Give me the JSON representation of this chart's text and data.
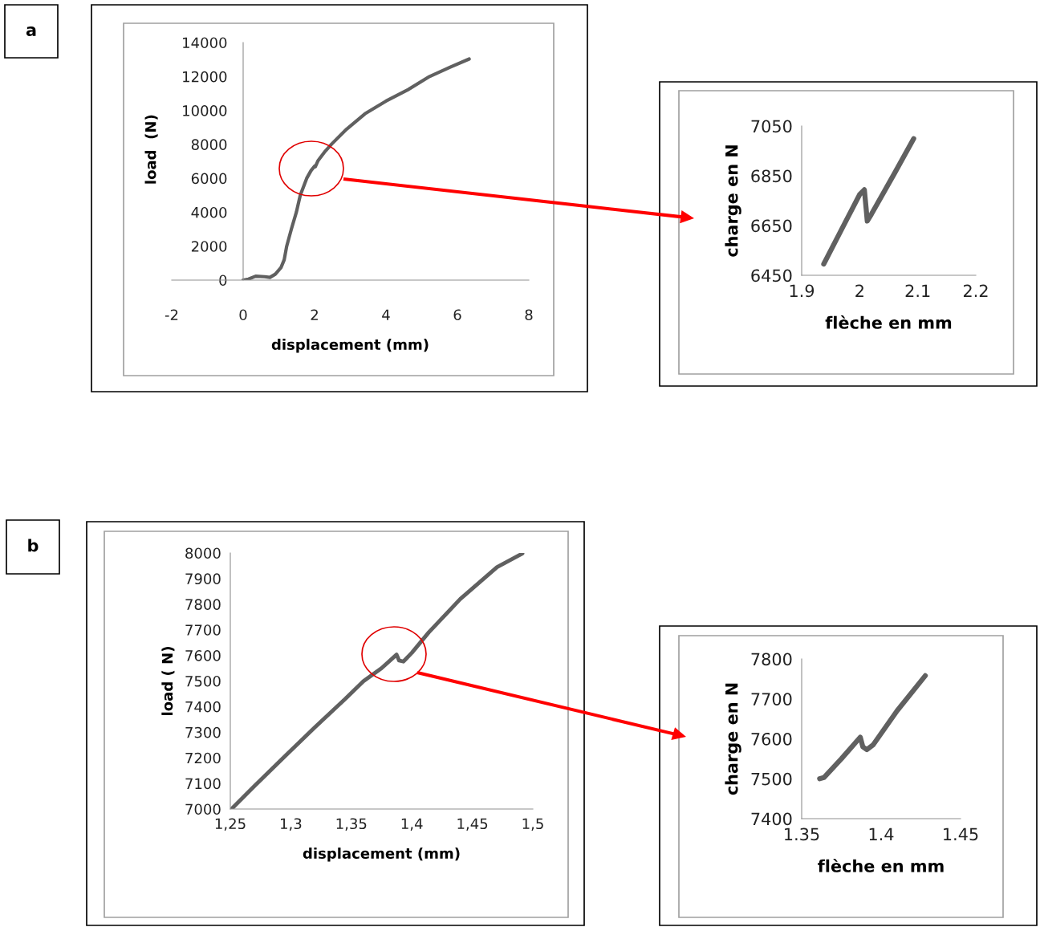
{
  "chart_data": [
    {
      "type": "line",
      "xlabel": "displacement (mm)",
      "ylabel": "load  (N)",
      "annotations": [
        "a"
      ],
      "color": "#606060",
      "x": [
        0,
        0.15,
        0.35,
        0.6,
        0.75,
        0.9,
        1.06,
        1.15,
        1.22,
        1.35,
        1.49,
        1.6,
        1.78,
        1.9,
        2.0,
        2.02,
        2.1,
        2.3,
        2.47,
        2.9,
        3.41,
        4,
        4.6,
        5.22,
        5.8,
        6.33
      ],
      "values": [
        0,
        60,
        230,
        200,
        160,
        350,
        740,
        1200,
        2000,
        3000,
        4000,
        5000,
        6000,
        6450,
        6720,
        6680,
        7050,
        7600,
        8000,
        8900,
        9800,
        10550,
        11200,
        12000,
        12550,
        13030
      ],
      "xlim": [
        -2,
        8
      ],
      "xticks": [
        -2,
        0,
        2,
        4,
        6,
        8
      ],
      "ylim": [
        0,
        14000
      ],
      "yticks": [
        0,
        2000,
        4000,
        6000,
        8000,
        10000,
        12000,
        14000
      ],
      "grid": false,
      "legend": false,
      "marker": "none",
      "line_style": "solid"
    },
    {
      "type": "line",
      "xlabel": "flèche en mm",
      "ylabel": "charge en N",
      "color": "#606060",
      "x": [
        1.938,
        1.97,
        2.0,
        2.008,
        2.011,
        2.013,
        2.02,
        2.06,
        2.093
      ],
      "values": [
        6495,
        6640,
        6775,
        6794,
        6720,
        6668,
        6695,
        6860,
        6999
      ],
      "xlim": [
        1.9,
        2.2
      ],
      "xticks": [
        1.9,
        2,
        2.1,
        2.2
      ],
      "ylim": [
        6450,
        7050
      ],
      "yticks": [
        6450,
        6650,
        6850,
        7050
      ],
      "grid": false,
      "legend": false,
      "marker": "none",
      "line_style": "solid"
    },
    {
      "type": "line",
      "xlabel": "displacement (mm)",
      "ylabel": "load ( N)",
      "annotations": [
        "b"
      ],
      "color": "#606060",
      "x": [
        1.251,
        1.27,
        1.297,
        1.32,
        1.345,
        1.36,
        1.375,
        1.3874,
        1.3895,
        1.393,
        1.4,
        1.414,
        1.44,
        1.4704,
        1.4914
      ],
      "values": [
        7000,
        7090,
        7215,
        7320,
        7430,
        7499,
        7550,
        7603,
        7580,
        7576,
        7610,
        7690,
        7820,
        7945,
        7998
      ],
      "xlim": [
        1.25,
        1.5
      ],
      "xticks": [
        {
          "value": 1.25,
          "label": "1,25"
        },
        {
          "value": 1.3,
          "label": "1,3"
        },
        {
          "value": 1.35,
          "label": "1,35"
        },
        {
          "value": 1.4,
          "label": "1,4"
        },
        {
          "value": 1.45,
          "label": "1,45"
        },
        {
          "value": 1.5,
          "label": "1,5"
        }
      ],
      "ylim": [
        7000,
        8000
      ],
      "yticks": [
        7000,
        7100,
        7200,
        7300,
        7400,
        7500,
        7600,
        7700,
        7800,
        7900,
        8000
      ],
      "grid": false,
      "legend": false,
      "marker": "none",
      "line_style": "solid"
    },
    {
      "type": "line",
      "xlabel": "flèche en mm",
      "ylabel": "charge en N",
      "color": "#606060",
      "x": [
        1.3613,
        1.364,
        1.375,
        1.3869,
        1.3885,
        1.391,
        1.395,
        1.41,
        1.4278
      ],
      "values": [
        7500,
        7503,
        7550,
        7604,
        7580,
        7573,
        7585,
        7670,
        7758
      ],
      "xlim": [
        1.35,
        1.45
      ],
      "xticks": [
        1.35,
        1.4,
        1.45
      ],
      "ylim": [
        7400,
        7800
      ],
      "yticks": [
        7400,
        7500,
        7600,
        7700,
        7800
      ],
      "grid": false,
      "legend": false,
      "marker": "none",
      "line_style": "solid"
    }
  ]
}
